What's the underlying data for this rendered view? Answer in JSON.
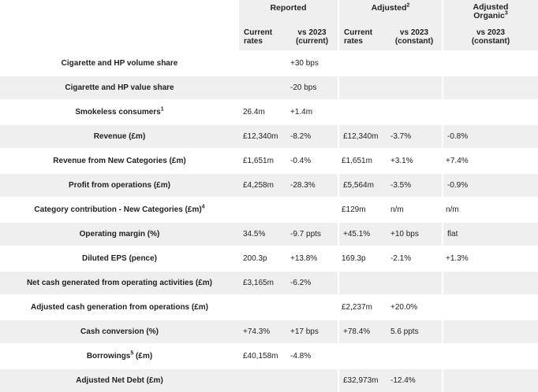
{
  "header": {
    "groups": {
      "reported": "Reported",
      "adjusted": "Adjusted",
      "adjusted_sup": "2",
      "organic": "Adjusted Organic",
      "organic_sup": "3"
    },
    "subheaders": {
      "rep_current_line1": "Current",
      "rep_current_line2": "rates",
      "rep_vs_line1": "vs 2023",
      "rep_vs_line2": "(current)",
      "adj_current_line1": "Current",
      "adj_current_line2": "rates",
      "adj_vs_line1": "vs 2023",
      "adj_vs_line2": "(constant)",
      "org_vs_line1": "vs 2023",
      "org_vs_line2": "(constant)"
    }
  },
  "rows": [
    {
      "label": "Cigarette and HP volume share",
      "sup": "",
      "rep_cur": "",
      "rep_vs": "+30 bps",
      "adj_cur": "",
      "adj_vs": "",
      "org_vs": ""
    },
    {
      "label": "Cigarette and HP value share",
      "sup": "",
      "rep_cur": "",
      "rep_vs": "-20 bps",
      "adj_cur": "",
      "adj_vs": "",
      "org_vs": ""
    },
    {
      "label": "Smokeless consumers",
      "sup": "1",
      "rep_cur": "26.4m",
      "rep_vs": "+1.4m",
      "adj_cur": "",
      "adj_vs": "",
      "org_vs": ""
    },
    {
      "label": "Revenue (£m)",
      "sup": "",
      "rep_cur": "£12,340m",
      "rep_vs": "-8.2%",
      "adj_cur": "£12,340m",
      "adj_vs": "-3.7%",
      "org_vs": "-0.8%"
    },
    {
      "label": "Revenue from New Categories (£m)",
      "sup": "",
      "rep_cur": "£1,651m",
      "rep_vs": "-0.4%",
      "adj_cur": "£1,651m",
      "adj_vs": "+3.1%",
      "org_vs": "+7.4%"
    },
    {
      "label": "Profit from operations (£m)",
      "sup": "",
      "rep_cur": "£4,258m",
      "rep_vs": "-28.3%",
      "adj_cur": "£5,564m",
      "adj_vs": "-3.5%",
      "org_vs": "-0.9%"
    },
    {
      "label": "Category contribution - New Categories (£m)",
      "sup": "4",
      "rep_cur": "",
      "rep_vs": "",
      "adj_cur": "£129m",
      "adj_vs": "n/m",
      "org_vs": "n/m"
    },
    {
      "label": "Operating margin (%)",
      "sup": "",
      "rep_cur": "34.5%",
      "rep_vs": "-9.7 ppts",
      "adj_cur": "+45.1%",
      "adj_vs": "+10 bps",
      "org_vs": "flat"
    },
    {
      "label": "Diluted EPS (pence)",
      "sup": "",
      "rep_cur": "200.3p",
      "rep_vs": "+13.8%",
      "adj_cur": "169.3p",
      "adj_vs": "-2.1%",
      "org_vs": "+1.3%"
    },
    {
      "label": "Net cash generated from operating activities (£m)",
      "sup": "",
      "rep_cur": "£3,165m",
      "rep_vs": "-6.2%",
      "adj_cur": "",
      "adj_vs": "",
      "org_vs": ""
    },
    {
      "label": "Adjusted cash generation from operations (£m)",
      "sup": "",
      "rep_cur": "",
      "rep_vs": "",
      "adj_cur": "£2,237m",
      "adj_vs": "+20.0%",
      "org_vs": ""
    },
    {
      "label": "Cash conversion (%)",
      "sup": "",
      "rep_cur": "+74.3%",
      "rep_vs": "+17 bps",
      "adj_cur": "+78.4%",
      "adj_vs": "5.6 ppts",
      "org_vs": ""
    },
    {
      "label": "Borrowings",
      "sup": "5",
      "label_suffix": " (£m)",
      "rep_cur": "£40,158m",
      "rep_vs": "-4.8%",
      "adj_cur": "",
      "adj_vs": "",
      "org_vs": ""
    },
    {
      "label": "Adjusted Net Debt (£m)",
      "sup": "",
      "rep_cur": "",
      "rep_vs": "",
      "adj_cur": "£32,973m",
      "adj_vs": "-12.4%",
      "org_vs": ""
    }
  ]
}
